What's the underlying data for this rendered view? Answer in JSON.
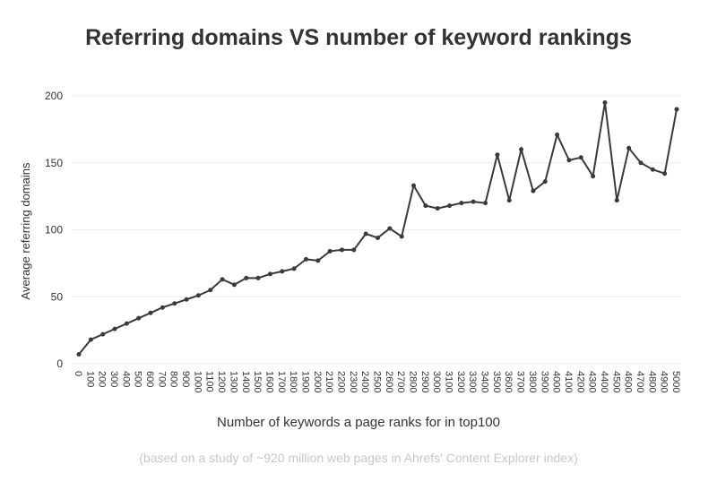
{
  "chart_data": {
    "type": "line",
    "title": "Referring domains VS number of keyword rankings",
    "x_label": "Number of keywords a page ranks for in top100",
    "y_label": "Average referring domains",
    "footnote": "(based on a study of ~920 million web pages in Ahrefs' Content Explorer index)",
    "categories": [
      "0",
      "100",
      "200",
      "300",
      "400",
      "500",
      "600",
      "700",
      "800",
      "900",
      "1000",
      "1100",
      "1200",
      "1300",
      "1400",
      "1500",
      "1600",
      "1700",
      "1800",
      "1900",
      "2000",
      "2100",
      "2200",
      "2300",
      "2400",
      "2500",
      "2600",
      "2700",
      "2800",
      "2900",
      "3000",
      "3100",
      "3200",
      "3300",
      "3400",
      "3500",
      "3600",
      "3700",
      "3800",
      "3900",
      "4000",
      "4100",
      "4200",
      "4300",
      "4400",
      "4500",
      "4600",
      "4700",
      "4800",
      "4900",
      "5000"
    ],
    "series": [
      {
        "name": "Average referring domains",
        "color": "#3a3a3a",
        "values": [
          7,
          18,
          22,
          26,
          30,
          34,
          38,
          42,
          45,
          48,
          51,
          55,
          63,
          59,
          64,
          64,
          67,
          69,
          71,
          78,
          77,
          84,
          85,
          85,
          97,
          94,
          101,
          95,
          133,
          118,
          116,
          118,
          120,
          121,
          120,
          156,
          122,
          160,
          129,
          136,
          171,
          152,
          154,
          140,
          195,
          122,
          161,
          150,
          145,
          142,
          190
        ]
      }
    ],
    "ylim": [
      0,
      200
    ],
    "yticks": [
      0,
      50,
      100,
      150,
      200
    ],
    "grid": true
  }
}
